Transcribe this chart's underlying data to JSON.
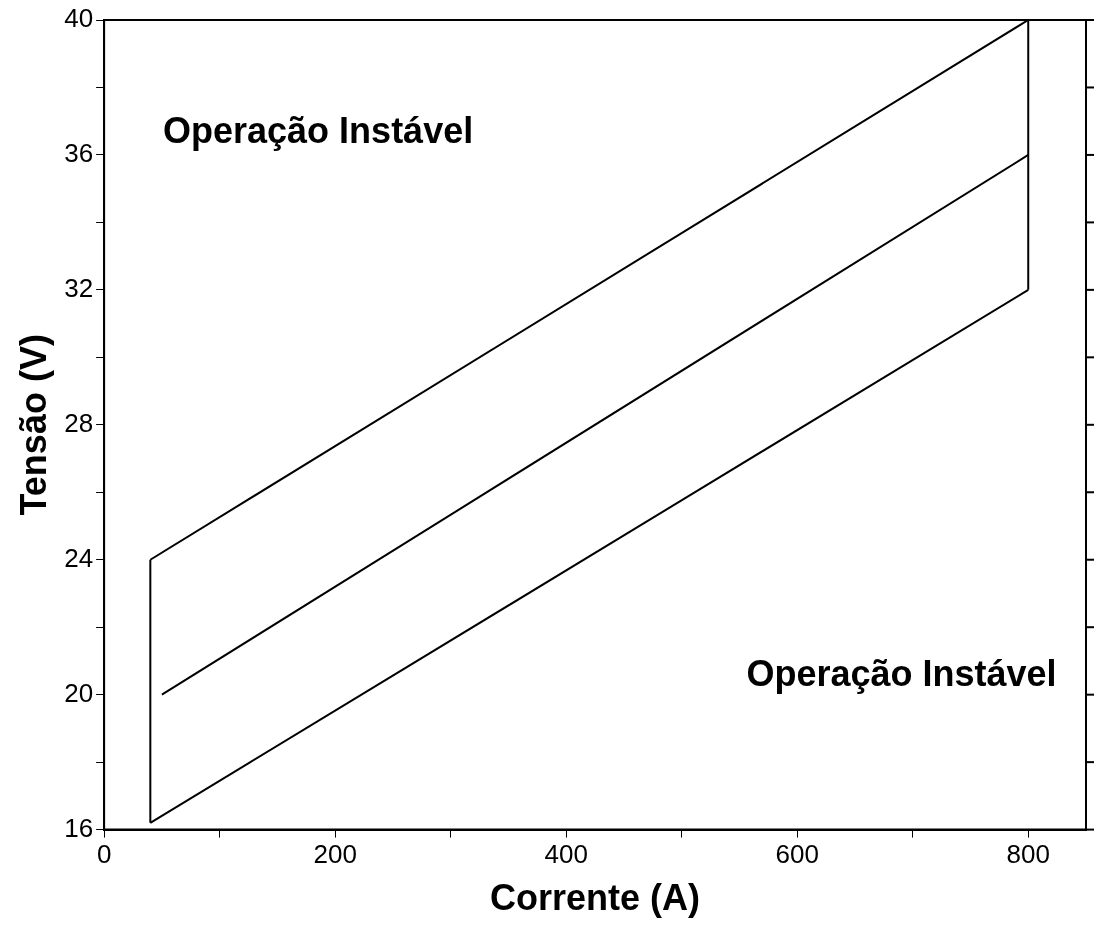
{
  "chart_data": {
    "type": "line",
    "xlabel": "Corrente (A)",
    "ylabel": "Tensão (V)",
    "series": [
      {
        "color": "#000000",
        "x": [
          40,
          800
        ],
        "values": [
          24,
          40
        ]
      },
      {
        "color": "#000000",
        "x": [
          50,
          800
        ],
        "values": [
          20,
          36
        ]
      },
      {
        "color": "#000000",
        "x": [
          40,
          800
        ],
        "values": [
          16.2,
          32
        ]
      },
      {
        "color": "#000000",
        "x": [
          40,
          40
        ],
        "values": [
          16.2,
          24
        ]
      },
      {
        "color": "#000000",
        "x": [
          800,
          800
        ],
        "values": [
          32,
          40
        ]
      }
    ],
    "xlim": [
      0,
      850
    ],
    "xticks": [
      0,
      {
        "value": 100,
        "label": null
      },
      200,
      {
        "value": 300,
        "label": null
      },
      400,
      {
        "value": 500,
        "label": null
      },
      600,
      {
        "value": 700,
        "label": null
      },
      800
    ],
    "ylim": [
      16,
      40
    ],
    "yticks": [
      16,
      {
        "value": 18,
        "label": null
      },
      20,
      {
        "value": 22,
        "label": null
      },
      24,
      {
        "value": 26,
        "label": null
      },
      28,
      {
        "value": 30,
        "label": null
      },
      32,
      {
        "value": 34,
        "label": null
      },
      36,
      {
        "value": 38,
        "label": null
      },
      40
    ],
    "annotations": [
      "Operação Instável",
      "Operação Instável"
    ],
    "grid": false,
    "legend": false,
    "marker": "none",
    "line_style": "solid"
  }
}
